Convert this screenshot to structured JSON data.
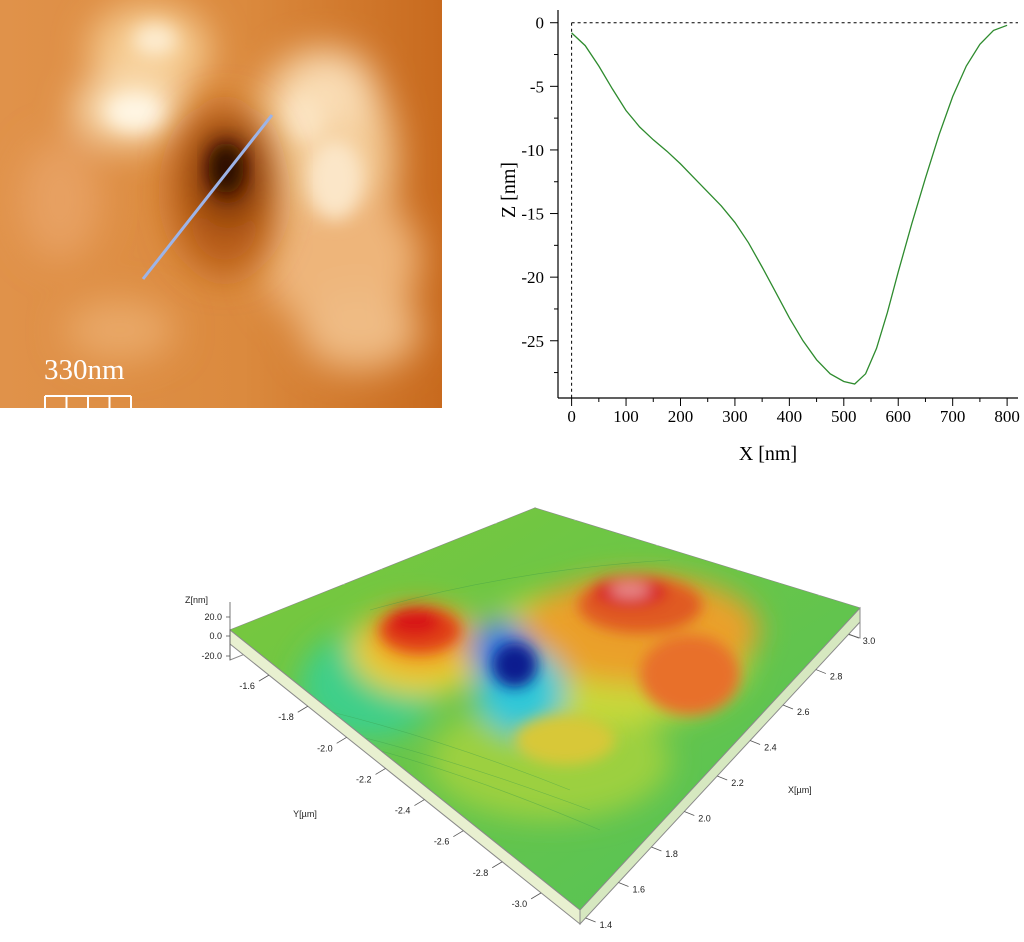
{
  "afm_image": {
    "scale_bar_label": "330nm",
    "line_color": "#9db4e8"
  },
  "chart_data": [
    {
      "type": "line",
      "title": "",
      "xlabel": "X [nm]",
      "ylabel": "Z [nm]",
      "xlim": [
        -25,
        820
      ],
      "ylim": [
        -29.5,
        1
      ],
      "xticks": [
        0,
        100,
        200,
        300,
        400,
        500,
        600,
        700,
        800
      ],
      "yticks": [
        0,
        -5,
        -10,
        -15,
        -20,
        -25
      ],
      "reference_lines": {
        "horizontal_at": 0,
        "vertical_at": 0,
        "style": "dashed"
      },
      "series": [
        {
          "color": "#2e8b2e",
          "x": [
            0,
            25,
            50,
            75,
            100,
            125,
            150,
            175,
            200,
            225,
            250,
            275,
            300,
            325,
            350,
            375,
            400,
            425,
            450,
            475,
            500,
            520,
            540,
            560,
            580,
            600,
            625,
            650,
            675,
            700,
            725,
            750,
            775,
            800
          ],
          "y": [
            -0.8,
            -1.8,
            -3.4,
            -5.2,
            -6.9,
            -8.2,
            -9.2,
            -10.1,
            -11.1,
            -12.2,
            -13.3,
            -14.4,
            -15.7,
            -17.3,
            -19.2,
            -21.2,
            -23.2,
            -25.0,
            -26.5,
            -27.6,
            -28.2,
            -28.4,
            -27.6,
            -25.6,
            -22.8,
            -19.6,
            -15.8,
            -12.2,
            -8.8,
            -5.8,
            -3.4,
            -1.7,
            -0.6,
            -0.2
          ]
        }
      ]
    },
    {
      "type": "heatmap",
      "title": "",
      "xlabel": "X[µm]",
      "ylabel": "Y[µm]",
      "zlabel": "Z[nm]",
      "x_ticks": [
        "1.4",
        "1.6",
        "1.8",
        "2.0",
        "2.2",
        "2.4",
        "2.6",
        "2.8",
        "3.0"
      ],
      "y_ticks": [
        "-1.6",
        "-1.8",
        "-2.0",
        "-2.2",
        "-2.4",
        "-2.6",
        "-2.8",
        "-3.0"
      ],
      "z_ticks": [
        "20.0",
        "0.0",
        "-20.0"
      ],
      "colormap": [
        "#0a1f8f",
        "#1f7be0",
        "#2fd0c8",
        "#4fd65a",
        "#9ad83a",
        "#e0e030",
        "#f0a020",
        "#e04018",
        "#d81818"
      ]
    }
  ]
}
